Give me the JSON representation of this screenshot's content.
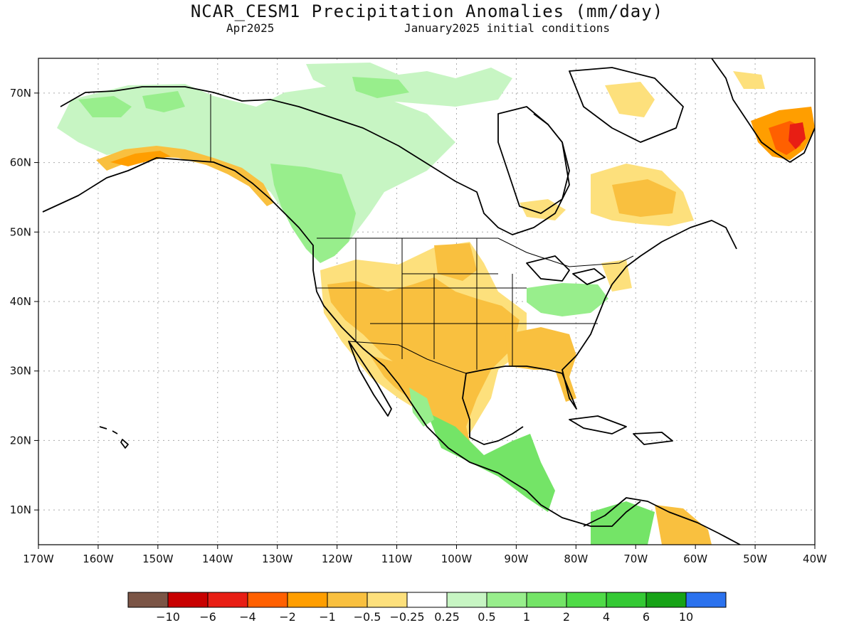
{
  "header": {
    "title": "NCAR_CESM1 Precipitation Anomalies (mm/day)",
    "valid_month": "Apr2025",
    "initial_conditions": "January2025 initial conditions"
  },
  "axes": {
    "lon_ticks": [
      "170W",
      "160W",
      "150W",
      "140W",
      "130W",
      "120W",
      "110W",
      "100W",
      "90W",
      "80W",
      "70W",
      "60W",
      "50W",
      "40W"
    ],
    "lat_ticks": [
      "70N",
      "60N",
      "50N",
      "40N",
      "30N",
      "20N",
      "10N"
    ],
    "lon_range": [
      -170,
      -40
    ],
    "lat_range": [
      5,
      75
    ]
  },
  "colorbar": {
    "colors": [
      "#7b5546",
      "#c80000",
      "#e81e14",
      "#ff6000",
      "#ff9e00",
      "#f9c03f",
      "#fde07c",
      "#ffffff",
      "#c7f5c3",
      "#98ee8c",
      "#74e467",
      "#4fdb47",
      "#34c934",
      "#17a317",
      "#2b72ee"
    ],
    "labels": [
      "−10",
      "−6",
      "−4",
      "−2",
      "−1",
      "−0.5",
      "−0.25",
      "0.25",
      "0.5",
      "1",
      "2",
      "4",
      "6",
      "10"
    ]
  },
  "anomaly_regions": [
    {
      "region": "US Southwest / Southern Plains",
      "category": "-1 to -0.5",
      "color": "#f9c03f"
    },
    {
      "region": "Gulf Coast / Southeast US",
      "category": "-1 to -0.5",
      "color": "#f9c03f"
    },
    {
      "region": "Southern Greenland",
      "category": "-4 to -1",
      "color": "#ff6000"
    },
    {
      "region": "Labrador / Quebec",
      "category": "-0.5 to -0.25",
      "color": "#fde07c"
    },
    {
      "region": "Pacific Northwest / British Columbia",
      "category": "0.25 to 1",
      "color": "#98ee8c"
    },
    {
      "region": "Alaska / Yukon",
      "category": "0.25 to 0.5",
      "color": "#c7f5c3"
    },
    {
      "region": "Central America",
      "category": "0.5 to 2",
      "color": "#74e467"
    },
    {
      "region": "Ohio Valley / Mid-Atlantic",
      "category": "0.25 to 1",
      "color": "#98ee8c"
    },
    {
      "region": "Northern South America",
      "category": "0.5 to 2",
      "color": "#74e467"
    }
  ]
}
